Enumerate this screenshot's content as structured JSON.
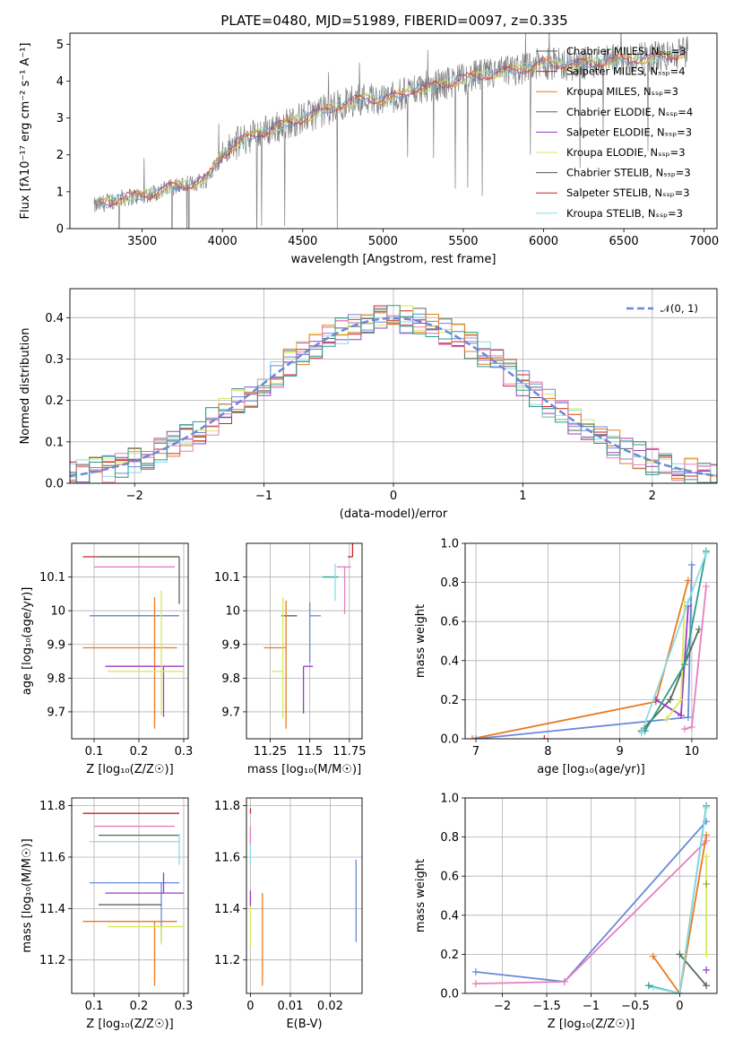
{
  "figure": {
    "title": "PLATE=0480, MJD=51989, FIBERID=0097, z=0.335"
  },
  "colors": {
    "blue": "#6a8ad8",
    "orange": "#e87a22",
    "darkgreen": "#556b55",
    "red": "#cc2222",
    "purple": "#9b3cc4",
    "gray": "#888888",
    "pink": "#e77fbf",
    "olive": "#9aa62c",
    "teal": "#2c9d8c",
    "yellow": "#d9e85a",
    "cyan": "#8adbe6",
    "darkgray": "#555555"
  },
  "chart_data": [
    {
      "id": "spectrum",
      "type": "line",
      "title": "PLATE=0480, MJD=51989, FIBERID=0097, z=0.335",
      "xlabel": "wavelength [Angstrom, rest frame]",
      "ylabel": "Flux [fλ10⁻¹⁷ erg cm⁻² s⁻¹ A⁻¹]",
      "xlim": [
        3050,
        7080
      ],
      "ylim": [
        0,
        5.3
      ],
      "xticks": [
        3500,
        4000,
        4500,
        5000,
        5500,
        6000,
        6500,
        7000
      ],
      "yticks": [
        0,
        1,
        2,
        3,
        4,
        5
      ],
      "legend_loc": "right",
      "legend": [
        "Chabrier MILES, Nₛₛₚ=3",
        "Salpeter MILES, Nₛₛₚ=4",
        "Kroupa MILES, Nₛₛₚ=3",
        "Chabrier ELODIE, Nₛₛₚ=4",
        "Salpeter ELODIE, Nₛₛₚ=3",
        "Kroupa ELODIE, Nₛₛₚ=3",
        "Chabrier STELIB, Nₛₛₚ=3",
        "Salpeter STELIB, Nₛₛₚ=3",
        "Kroupa STELIB, Nₛₛₚ=3"
      ],
      "continuum": {
        "x": [
          3200,
          3300,
          3400,
          3500,
          3600,
          3700,
          3800,
          3900,
          4000,
          4100,
          4200,
          4300,
          4400,
          4500,
          4600,
          4700,
          4800,
          4900,
          5000,
          5100,
          5200,
          5300,
          5400,
          5500,
          5600,
          5700,
          5800,
          5900,
          6000,
          6100,
          6200,
          6300,
          6400,
          6500,
          6600,
          6700,
          6800,
          6900
        ],
        "y": [
          0.6,
          0.75,
          0.85,
          0.9,
          1.0,
          1.15,
          1.2,
          1.35,
          2.0,
          2.35,
          2.55,
          2.7,
          2.85,
          3.0,
          3.15,
          3.3,
          3.45,
          3.55,
          3.5,
          3.6,
          3.8,
          3.85,
          3.95,
          4.05,
          4.15,
          4.2,
          4.3,
          4.35,
          4.5,
          4.45,
          4.45,
          4.5,
          4.55,
          4.6,
          4.6,
          4.65,
          4.7,
          4.8
        ]
      }
    },
    {
      "id": "residuals",
      "type": "line",
      "xlabel": "(data-model)/error",
      "ylabel": "Normed distribution",
      "xlim": [
        -2.5,
        2.5
      ],
      "ylim": [
        0,
        0.47
      ],
      "xticks": [
        -2,
        -1,
        0,
        1,
        2
      ],
      "yticks": [
        0.0,
        0.1,
        0.2,
        0.3,
        0.4
      ],
      "legend": [
        "𝒩(0, 1)"
      ],
      "legend_loc": "top-right",
      "grid": true,
      "gaussian": {
        "mu": 0,
        "sigma": 1
      }
    },
    {
      "id": "age_vs_Z",
      "type": "scatter",
      "xlabel": "Z [log₁₀(Z/Z☉)]",
      "ylabel": "age  [log₁₀(age/yr)]",
      "xlim": [
        0.05,
        0.31
      ],
      "ylim": [
        9.62,
        10.2
      ],
      "xticks": [
        0.1,
        0.2,
        0.3
      ],
      "yticks": [
        9.7,
        9.8,
        9.9,
        10.0,
        10.1
      ],
      "grid": true,
      "points": [
        {
          "color": "red",
          "x": 0.29,
          "y": 10.16,
          "xerr": [
            0.215,
            0.0
          ],
          "yerr": [
            0.0,
            0.0
          ]
        },
        {
          "color": "darkgreen",
          "x": 0.29,
          "y": 10.16,
          "xerr": [
            0.18,
            0.0
          ],
          "yerr": [
            0.14,
            0.0
          ]
        },
        {
          "color": "pink",
          "x": 0.28,
          "y": 10.13,
          "xerr": [
            0.18,
            0.0
          ],
          "yerr": [
            0.0,
            0.0
          ]
        },
        {
          "color": "teal",
          "x": 0.29,
          "y": 9.985,
          "xerr": [
            0.2,
            0.0
          ],
          "yerr": [
            0.0,
            0.0
          ]
        },
        {
          "color": "blue",
          "x": 0.25,
          "y": 9.985,
          "xerr": [
            0.16,
            0.04
          ],
          "yerr": [
            0.0,
            0.0
          ]
        },
        {
          "color": "orange",
          "x": 0.235,
          "y": 9.89,
          "xerr": [
            0.16,
            0.05
          ],
          "yerr": [
            0.24,
            0.15
          ]
        },
        {
          "color": "purple",
          "x": 0.255,
          "y": 9.835,
          "xerr": [
            0.13,
            0.045
          ],
          "yerr": [
            0.15,
            0.0
          ]
        },
        {
          "color": "yellow",
          "x": 0.25,
          "y": 9.82,
          "xerr": [
            0.12,
            0.05
          ],
          "yerr": [
            0.13,
            0.24
          ]
        }
      ]
    },
    {
      "id": "age_vs_mass",
      "type": "scatter",
      "xlabel": "mass [log₁₀(M/M☉)]",
      "ylabel": "",
      "xlim": [
        11.1,
        11.83
      ],
      "ylim": [
        9.62,
        10.2
      ],
      "xticks": [
        11.25,
        11.5,
        11.75
      ],
      "yticks": [
        9.7,
        9.8,
        9.9,
        10.0,
        10.1
      ],
      "grid": true,
      "points": [
        {
          "color": "red",
          "x": 11.77,
          "y": 10.16,
          "xerr": [
            0.03,
            0.0
          ],
          "yerr": [
            0.0,
            0.07
          ]
        },
        {
          "color": "blue",
          "x": 11.5,
          "y": 9.985,
          "xerr": [
            0.0,
            0.07
          ],
          "yerr": [
            0.14,
            0.04
          ]
        },
        {
          "color": "darkgreen",
          "x": 11.42,
          "y": 9.985,
          "xerr": [
            0.1,
            0.0
          ],
          "yerr": [
            0.0,
            0.0
          ]
        },
        {
          "color": "teal",
          "x": 11.68,
          "y": 10.1,
          "xerr": [
            0.1,
            0.0
          ],
          "yerr": [
            0.0,
            0.0
          ]
        },
        {
          "color": "pink",
          "x": 11.72,
          "y": 10.13,
          "xerr": [
            0.05,
            0.04
          ],
          "yerr": [
            0.14,
            0.0
          ]
        },
        {
          "color": "cyan",
          "x": 11.66,
          "y": 10.14,
          "xerr": [
            0.0,
            0.0
          ],
          "yerr": [
            0.11,
            0.0
          ]
        },
        {
          "color": "orange",
          "x": 11.35,
          "y": 9.89,
          "xerr": [
            0.14,
            0.0
          ],
          "yerr": [
            0.24,
            0.14
          ]
        },
        {
          "color": "purple",
          "x": 11.46,
          "y": 9.835,
          "xerr": [
            0.0,
            0.06
          ],
          "yerr": [
            0.14,
            0.0
          ]
        },
        {
          "color": "yellow",
          "x": 11.33,
          "y": 9.82,
          "xerr": [
            0.07,
            0.0
          ],
          "yerr": [
            0.14,
            0.22
          ]
        }
      ]
    },
    {
      "id": "weight_vs_age",
      "type": "line",
      "xlabel": "age  [log₁₀(age/yr)]",
      "ylabel": "mass weight",
      "xlim": [
        6.85,
        10.35
      ],
      "ylim": [
        0.0,
        1.0
      ],
      "xticks": [
        7,
        8,
        9,
        10
      ],
      "yticks": [
        0.0,
        0.2,
        0.4,
        0.6,
        0.8,
        1.0
      ],
      "grid": true,
      "series": [
        {
          "color": "orange",
          "x": [
            6.95,
            9.5,
            9.95
          ],
          "y": [
            0.0,
            0.19,
            0.81
          ]
        },
        {
          "color": "blue",
          "x": [
            7.0,
            9.95,
            10.0
          ],
          "y": [
            0.0,
            0.11,
            0.89
          ]
        },
        {
          "color": "darkgreen",
          "x": [
            9.3,
            9.7,
            10.1
          ],
          "y": [
            0.04,
            0.2,
            0.56
          ]
        },
        {
          "color": "purple",
          "x": [
            9.5,
            9.85,
            9.95
          ],
          "y": [
            0.2,
            0.12,
            0.68
          ]
        },
        {
          "color": "yellow",
          "x": [
            9.65,
            9.85,
            9.9
          ],
          "y": [
            0.1,
            0.2,
            0.7
          ]
        },
        {
          "color": "pink",
          "x": [
            9.9,
            10.0,
            10.2
          ],
          "y": [
            0.05,
            0.06,
            0.78
          ]
        },
        {
          "color": "teal",
          "x": [
            9.35,
            9.9,
            10.2
          ],
          "y": [
            0.04,
            0.38,
            0.96
          ]
        },
        {
          "color": "cyan",
          "x": [
            9.3,
            9.95,
            10.2
          ],
          "y": [
            0.03,
            0.7,
            0.95
          ]
        },
        {
          "color": "red",
          "x": [
            7.95
          ],
          "y": [
            0.0
          ]
        }
      ]
    },
    {
      "id": "mass_vs_Z",
      "type": "scatter",
      "xlabel": "Z [log₁₀(Z/Z☉)]",
      "ylabel": "mass [log₁₀(M/M☉)]",
      "xlim": [
        0.05,
        0.31
      ],
      "ylim": [
        11.07,
        11.83
      ],
      "xticks": [
        0.1,
        0.2,
        0.3
      ],
      "yticks": [
        11.2,
        11.4,
        11.6,
        11.8
      ],
      "grid": true,
      "points": [
        {
          "color": "red",
          "x": 0.29,
          "y": 11.77,
          "xerr": [
            0.215,
            0.0
          ],
          "yerr": [
            0.0,
            0.0
          ]
        },
        {
          "color": "pink",
          "x": 0.28,
          "y": 11.72,
          "xerr": [
            0.18,
            0.0
          ],
          "yerr": [
            0.0,
            0.0
          ]
        },
        {
          "color": "darkgreen",
          "x": 0.29,
          "y": 11.685,
          "xerr": [
            0.18,
            0.0
          ],
          "yerr": [
            0.0,
            0.0
          ]
        },
        {
          "color": "cyan",
          "x": 0.29,
          "y": 11.66,
          "xerr": [
            0.2,
            0.0
          ],
          "yerr": [
            0.09,
            0.03
          ]
        },
        {
          "color": "blue",
          "x": 0.25,
          "y": 11.5,
          "xerr": [
            0.16,
            0.04
          ],
          "yerr": [
            0.23,
            0.0
          ]
        },
        {
          "color": "purple",
          "x": 0.255,
          "y": 11.46,
          "xerr": [
            0.13,
            0.045
          ],
          "yerr": [
            0.0,
            0.08
          ]
        },
        {
          "color": "darkgreen",
          "x": 0.25,
          "y": 11.415,
          "xerr": [
            0.14,
            0.0
          ],
          "yerr": [
            0.0,
            0.0
          ]
        },
        {
          "color": "orange",
          "x": 0.235,
          "y": 11.35,
          "xerr": [
            0.16,
            0.05
          ],
          "yerr": [
            0.25,
            0.0
          ]
        },
        {
          "color": "yellow",
          "x": 0.25,
          "y": 11.33,
          "xerr": [
            0.12,
            0.05
          ],
          "yerr": [
            0.07,
            0.0
          ]
        }
      ]
    },
    {
      "id": "mass_vs_ebv",
      "type": "scatter",
      "xlabel": "E(B-V)",
      "ylabel": "",
      "xlim": [
        -0.001,
        0.028
      ],
      "ylim": [
        11.07,
        11.83
      ],
      "xticks": [
        0.0,
        0.01,
        0.02
      ],
      "yticks": [
        11.2,
        11.4,
        11.6,
        11.8
      ],
      "grid": true,
      "points": [
        {
          "color": "red",
          "x": 0.0,
          "y": 11.77,
          "yerr": [
            0.0,
            0.02
          ]
        },
        {
          "color": "cyan",
          "x": 0.0,
          "y": 11.66,
          "yerr": [
            0.09,
            0.03
          ]
        },
        {
          "color": "pink",
          "x": 0.0,
          "y": 11.72,
          "yerr": [
            0.07,
            0.0
          ]
        },
        {
          "color": "yellow",
          "x": 0.0,
          "y": 11.33,
          "yerr": [
            0.08,
            0.14
          ]
        },
        {
          "color": "purple",
          "x": 0.0,
          "y": 11.46,
          "yerr": [
            0.05,
            0.01
          ]
        },
        {
          "color": "orange",
          "x": 0.003,
          "y": 11.35,
          "yerr": [
            0.25,
            0.11
          ]
        },
        {
          "color": "blue",
          "x": 0.0265,
          "y": 11.44,
          "yerr": [
            0.17,
            0.15
          ]
        }
      ]
    },
    {
      "id": "weight_vs_Z",
      "type": "line",
      "xlabel": "Z [log₁₀(Z/Z☉)]",
      "ylabel": "mass weight",
      "xlim": [
        -2.42,
        0.42
      ],
      "ylim": [
        0.0,
        1.0
      ],
      "xticks": [
        -2.0,
        -1.5,
        -1.0,
        -0.5,
        0.0
      ],
      "yticks": [
        0.0,
        0.2,
        0.4,
        0.6,
        0.8,
        1.0
      ],
      "grid": true,
      "series": [
        {
          "color": "blue",
          "x": [
            -2.3,
            -1.3,
            0.3
          ],
          "y": [
            0.11,
            0.06,
            0.88
          ]
        },
        {
          "color": "pink",
          "x": [
            -2.3,
            -1.3,
            0.3
          ],
          "y": [
            0.05,
            0.06,
            0.78
          ]
        },
        {
          "color": "orange",
          "x": [
            -0.3,
            0.0,
            0.3
          ],
          "y": [
            0.19,
            0.0,
            0.81
          ]
        },
        {
          "color": "darkgreen",
          "x": [
            0.0,
            0.3
          ],
          "y": [
            0.2,
            0.04
          ]
        },
        {
          "color": "teal",
          "x": [
            -0.35,
            0.0,
            0.3
          ],
          "y": [
            0.04,
            0.0,
            0.96
          ]
        },
        {
          "color": "cyan",
          "x": [
            -0.3,
            0.0,
            0.3
          ],
          "y": [
            0.03,
            0.0,
            0.95
          ]
        },
        {
          "color": "yellow",
          "x": [
            0.3,
            0.3
          ],
          "y": [
            0.2,
            0.7
          ]
        },
        {
          "color": "purple",
          "x": [
            0.3
          ],
          "y": [
            0.12
          ]
        },
        {
          "color": "olive",
          "x": [
            0.3
          ],
          "y": [
            0.56
          ]
        }
      ]
    }
  ]
}
